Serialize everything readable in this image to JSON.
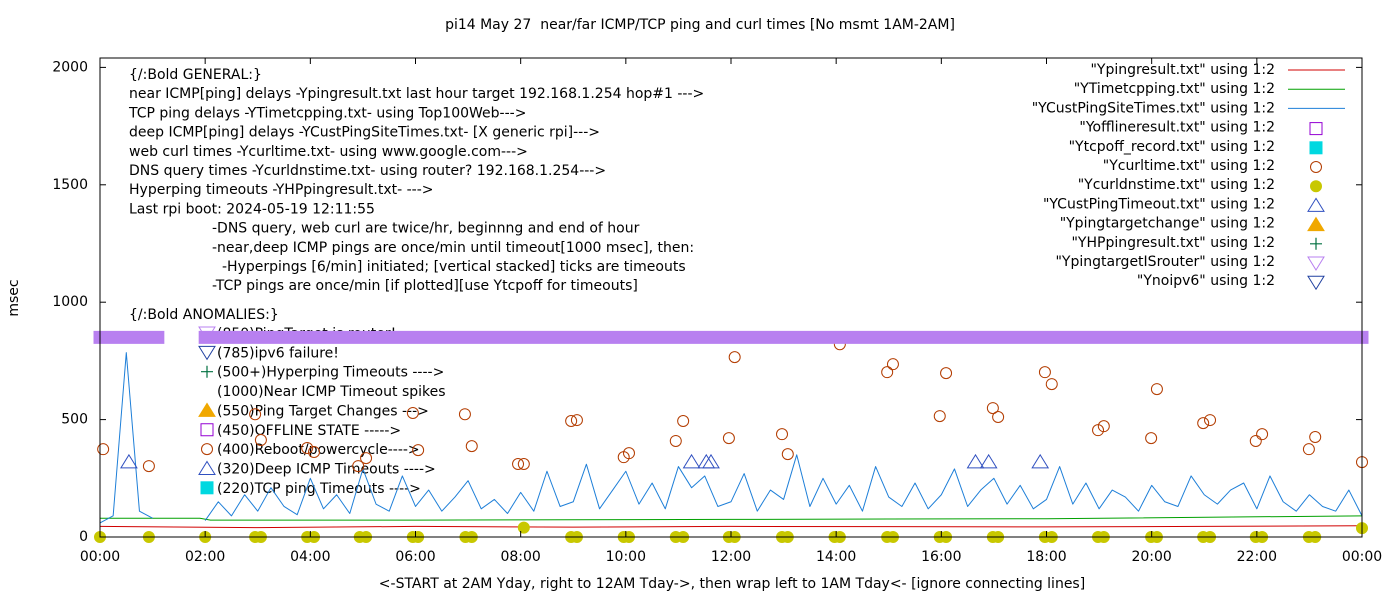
{
  "chart_data": {
    "type": "line",
    "title": "pi14 May 27  near/far ICMP/TCP ping and curl times [No msmt 1AM-2AM]",
    "xlabel": "<-START at 2AM Yday, right to 12AM Tday->, then wrap left to 1AM Tday<- [ignore connecting lines]",
    "ylabel": "msec",
    "xlim": [
      0,
      24
    ],
    "ylim": [
      0,
      2040
    ],
    "xticks": [
      {
        "value": 0,
        "label": "00:00"
      },
      {
        "value": 2,
        "label": "02:00"
      },
      {
        "value": 4,
        "label": "04:00"
      },
      {
        "value": 6,
        "label": "06:00"
      },
      {
        "value": 8,
        "label": "08:00"
      },
      {
        "value": 10,
        "label": "10:00"
      },
      {
        "value": 12,
        "label": "12:00"
      },
      {
        "value": 14,
        "label": "14:00"
      },
      {
        "value": 16,
        "label": "16:00"
      },
      {
        "value": 18,
        "label": "18:00"
      },
      {
        "value": 20,
        "label": "20:00"
      },
      {
        "value": 22,
        "label": "22:00"
      },
      {
        "value": 24,
        "label": "00:00"
      }
    ],
    "yticks": [
      0,
      500,
      1000,
      1500,
      2000
    ],
    "legend": "top-right",
    "annotations": [
      "{/:Bold GENERAL:}",
      "near ICMP[ping] delays -Ypingresult.txt last hour target 192.168.1.254 hop#1 --->",
      "TCP ping delays -YTimetcpping.txt- using Top100Web--->",
      "deep ICMP[ping] delays -YCustPingSiteTimes.txt- [X generic rpi]--->",
      "web curl times -Ycurltime.txt- using www.google.com--->",
      "DNS query times -Ycurldnstime.txt- using router? 192.168.1.254--->",
      "Hyperping timeouts -YHPpingresult.txt- --->",
      "Last rpi boot: 2024-05-19 12:11:55",
      "-DNS query, web curl are twice/hr, beginnng and end of hour",
      "-near,deep ICMP pings are once/min until timeout[1000 msec], then:",
      "-Hyperpings [6/min] initiated; [vertical stacked] ticks are timeouts",
      "-TCP pings are once/min [if plotted][use Ytcpoff for timeouts]",
      "{/:Bold ANOMALIES:}",
      "(850)PingTarget is router!",
      "(785)ipv6 failure!",
      "(500+)Hyperping Timeouts ---->",
      "(1000)Near ICMP Timeout spikes",
      "(550)Ping Target Changes --->",
      "(450)OFFLINE STATE ----->",
      "(400)Reboot/powercycle---->",
      "(320)Deep ICMP Timeouts ---->",
      "(220)TCP ping Timeouts ---->"
    ],
    "series": [
      {
        "name": "\"Ypingresult.txt\" using 1:2",
        "color": "#d00000",
        "marker": "line",
        "x": [
          0,
          3,
          6,
          9,
          12,
          15,
          18,
          21,
          24
        ],
        "values": [
          45,
          40,
          45,
          42,
          45,
          44,
          43,
          45,
          48
        ]
      },
      {
        "name": "\"YTimetcpping.txt\" using 1:2",
        "color": "#00a000",
        "marker": "line",
        "x": [
          0,
          1.9,
          2.1,
          6,
          12,
          18,
          24
        ],
        "values": [
          80,
          80,
          72,
          72,
          75,
          78,
          90
        ]
      },
      {
        "name": "\"YCustPingSiteTimes.txt\" using 1:2",
        "color": "#1e7fd8",
        "marker": "line",
        "x": [
          0,
          0.25,
          0.5,
          0.75,
          1,
          1.25,
          1.5,
          1.75,
          2,
          2.25,
          2.5,
          2.75,
          3,
          3.25,
          3.5,
          3.75,
          4,
          4.25,
          4.5,
          4.75,
          5,
          5.25,
          5.5,
          5.75,
          6,
          6.25,
          6.5,
          6.75,
          7,
          7.25,
          7.5,
          7.75,
          8,
          8.25,
          8.5,
          8.75,
          9,
          9.25,
          9.5,
          9.75,
          10,
          10.25,
          10.5,
          10.75,
          11,
          11.25,
          11.5,
          11.75,
          12,
          12.25,
          12.5,
          12.75,
          13,
          13.25,
          13.5,
          13.75,
          14,
          14.25,
          14.5,
          14.75,
          15,
          15.25,
          15.5,
          15.75,
          16,
          16.25,
          16.5,
          16.75,
          17,
          17.25,
          17.5,
          17.75,
          18,
          18.25,
          18.5,
          18.75,
          19,
          19.25,
          19.5,
          19.75,
          20,
          20.25,
          20.5,
          20.75,
          21,
          21.25,
          21.5,
          21.75,
          22,
          22.25,
          22.5,
          22.75,
          23,
          23.25,
          23.5,
          23.75,
          24
        ],
        "values": [
          60,
          90,
          785,
          110,
          80,
          null,
          null,
          null,
          70,
          150,
          90,
          180,
          110,
          210,
          130,
          95,
          250,
          120,
          180,
          100,
          290,
          140,
          110,
          260,
          130,
          200,
          110,
          170,
          240,
          120,
          160,
          100,
          190,
          110,
          280,
          130,
          150,
          310,
          120,
          200,
          280,
          140,
          230,
          120,
          300,
          210,
          260,
          130,
          150,
          270,
          110,
          200,
          160,
          350,
          130,
          250,
          140,
          220,
          110,
          300,
          170,
          130,
          230,
          120,
          180,
          290,
          130,
          200,
          250,
          140,
          220,
          120,
          160,
          300,
          140,
          230,
          120,
          200,
          170,
          110,
          220,
          150,
          130,
          260,
          180,
          140,
          200,
          230,
          120,
          260,
          150,
          110,
          180,
          130,
          110,
          200,
          90
        ]
      },
      {
        "name": "\"Yofflineresult.txt\" using 1:2",
        "color": "#9400d3",
        "marker": "square-open",
        "x": [],
        "values": []
      },
      {
        "name": "\"Ytcpoff_record.txt\" using 1:2",
        "color": "#00d8e0",
        "marker": "square-filled",
        "x": [],
        "values": []
      },
      {
        "name": "\"Ycurltime.txt\" using 1:2",
        "color": "#b33c00",
        "marker": "circle-open",
        "x": [
          0.06,
          0.93,
          2.95,
          3.06,
          3.94,
          4.07,
          4.91,
          5.06,
          5.95,
          6.05,
          6.94,
          7.07,
          7.95,
          8.06,
          8.96,
          9.07,
          9.96,
          10.06,
          10.95,
          11.09,
          11.96,
          12.07,
          12.97,
          13.08,
          14.07,
          14.97,
          15.08,
          15.97,
          16.09,
          16.98,
          17.08,
          17.97,
          18.1,
          18.98,
          19.09,
          19.99,
          20.1,
          20.98,
          21.11,
          21.98,
          22.1,
          22.99,
          23.11,
          24
        ],
        "values": [
          374,
          302,
          523,
          413,
          379,
          362,
          302,
          336,
          528,
          370,
          523,
          387,
          311,
          311,
          494,
          498,
          340,
          357,
          409,
          494,
          421,
          766,
          438,
          353,
          821,
          702,
          736,
          515,
          698,
          549,
          511,
          702,
          651,
          455,
          472,
          421,
          630,
          485,
          498,
          409,
          438,
          374,
          426,
          319
        ]
      },
      {
        "name": "\"Ycurldnstime.txt\" using 1:2",
        "color": "#c8c800",
        "marker": "circle-filled",
        "x": [
          0,
          0.93,
          2,
          2.95,
          3.06,
          3.94,
          4.07,
          4.94,
          5.06,
          5.95,
          6.05,
          6.95,
          7.07,
          8.06,
          8.96,
          9.07,
          9.96,
          10.06,
          10.95,
          11.09,
          11.96,
          12.07,
          12.97,
          13.08,
          13.97,
          14.07,
          14.97,
          15.08,
          15.97,
          16.09,
          16.98,
          17.08,
          17.97,
          18.1,
          18.98,
          19.09,
          19.99,
          20.1,
          20.98,
          21.11,
          21.98,
          22.1,
          22.99,
          23.11,
          24
        ],
        "values": [
          0,
          0,
          0,
          0,
          0,
          0,
          0,
          0,
          0,
          0,
          0,
          0,
          0,
          40,
          0,
          0,
          0,
          0,
          0,
          0,
          0,
          0,
          0,
          0,
          0,
          0,
          0,
          0,
          0,
          0,
          0,
          0,
          0,
          0,
          0,
          0,
          0,
          0,
          0,
          0,
          0,
          0,
          0,
          0,
          38
        ]
      },
      {
        "name": "\"YCustPingTimeout.txt\" using 1:2",
        "color": "#3050c0",
        "marker": "triangle-open",
        "x": [
          0.55,
          11.25,
          11.53,
          11.62,
          16.65,
          16.9,
          17.88
        ],
        "values": [
          320,
          320,
          320,
          320,
          320,
          320,
          320
        ]
      },
      {
        "name": "\"Ypingtargetchange\" using 1:2",
        "color": "#f0a800",
        "marker": "triangle-filled",
        "x": [],
        "values": []
      },
      {
        "name": "\"YHPpingresult.txt\" using 1:2",
        "color": "#007040",
        "marker": "plus",
        "x": [],
        "values": []
      },
      {
        "name": "\"YpingtargetISrouter\" using 1:2",
        "color": "#b880f0",
        "marker": "triangle-down-open",
        "style": "band",
        "x": [
          0,
          1.1,
          1.5,
          2.0,
          24
        ],
        "values": [
          850,
          850,
          null,
          850,
          850
        ]
      },
      {
        "name": "\"Ynoipv6\" using 1:2",
        "color": "#2040a0",
        "marker": "triangle-down-open",
        "x": [],
        "values": []
      }
    ]
  }
}
